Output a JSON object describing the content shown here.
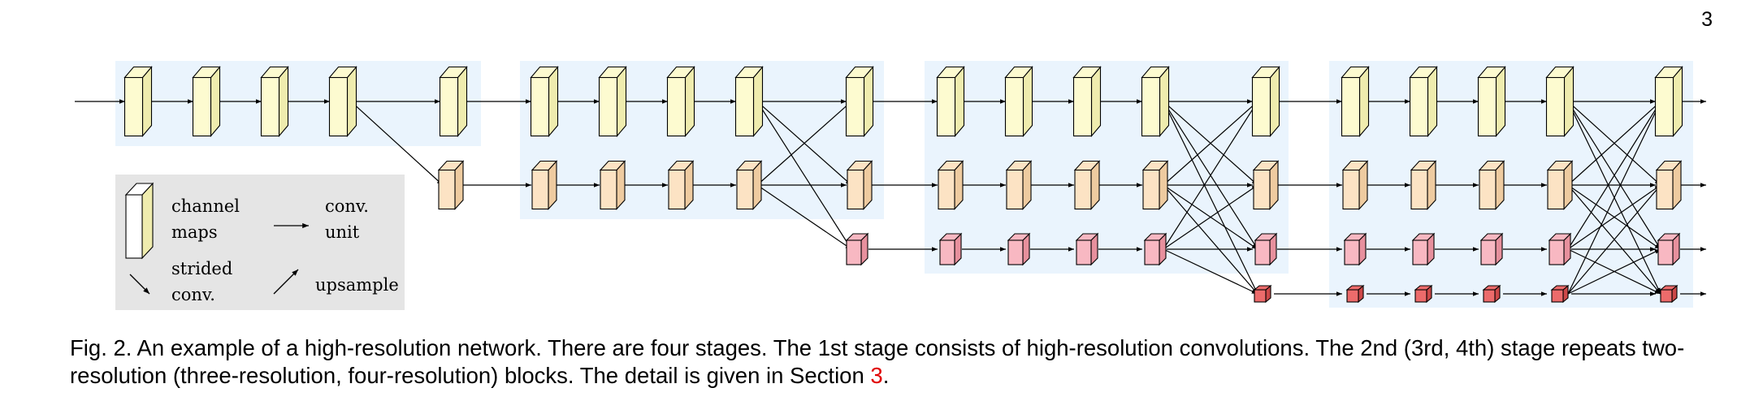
{
  "page": {
    "number": "3"
  },
  "colors": {
    "stage_bg": "#eaf4fd",
    "legend_bg": "#e5e5e5",
    "res1_front": "#fdfbd0",
    "res1_side": "#efecae",
    "res2_front": "#fce3c4",
    "res2_side": "#eecba0",
    "res3_front": "#f8b8c2",
    "res3_side": "#e7909d",
    "res4_front": "#ec6b6b",
    "res4_side": "#cc4848",
    "reference": "#e00000"
  },
  "legend": {
    "channel_maps": [
      "channel",
      "maps"
    ],
    "conv_unit": [
      "conv.",
      "unit"
    ],
    "strided_conv": [
      "strided",
      "conv."
    ],
    "upsample": [
      "upsample"
    ]
  },
  "caption": {
    "fig_label": "Fig. 2.",
    "part1": " An example of a high-resolution network. There are four stages. The ",
    "ord1": "1st",
    "part2": " stage consists of high-resolution convolutions. The ",
    "ord2": "2nd",
    "part3": " (",
    "ord3": "3rd",
    "part4": ", ",
    "ord4": "4th",
    "part5": ") stage repeats two-resolution (three-resolution, four-resolution) blocks. The detail is given in Section ",
    "section_ref": "3",
    "part6": "."
  }
}
